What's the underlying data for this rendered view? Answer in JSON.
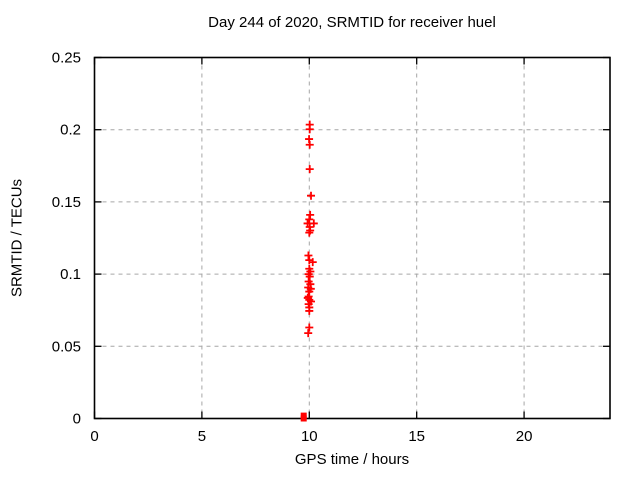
{
  "chart_data": {
    "type": "scatter",
    "title": "Day 244 of 2020, SRMTID for receiver huel",
    "xlabel": "GPS time / hours",
    "ylabel": "SRMTID / TECUs",
    "xlim": [
      0,
      24
    ],
    "ylim": [
      0,
      0.25
    ],
    "grid": true,
    "legend": "none",
    "x_ticks": [
      {
        "v": 0,
        "label": "0"
      },
      {
        "v": 5,
        "label": "5"
      },
      {
        "v": 10,
        "label": "10"
      },
      {
        "v": 15,
        "label": "15"
      },
      {
        "v": 20,
        "label": "20"
      }
    ],
    "y_ticks": [
      {
        "v": 0,
        "label": "0"
      },
      {
        "v": 0.05,
        "label": "0.05"
      },
      {
        "v": 0.1,
        "label": "0.1"
      },
      {
        "v": 0.15,
        "label": "0.15"
      },
      {
        "v": 0.2,
        "label": "0.2"
      },
      {
        "v": 0.25,
        "label": "0.25"
      }
    ],
    "colors": {
      "marker": "#ff0000",
      "grid": "#a6a6a6",
      "border": "#000000"
    },
    "series": [
      {
        "name": "srmtid-values",
        "marker": "plus",
        "color": "#ff0000",
        "points": [
          [
            10.02,
            0.2035
          ],
          [
            10.02,
            0.2003
          ],
          [
            9.99,
            0.1935
          ],
          [
            10.02,
            0.1896
          ],
          [
            10.02,
            0.1727
          ],
          [
            10.08,
            0.1543
          ],
          [
            10.04,
            0.141
          ],
          [
            10.0,
            0.1379
          ],
          [
            9.92,
            0.1351
          ],
          [
            10.21,
            0.1351
          ],
          [
            10.02,
            0.1326
          ],
          [
            10.04,
            0.1302
          ],
          [
            10.0,
            0.1287
          ],
          [
            9.96,
            0.1129
          ],
          [
            10.0,
            0.1097
          ],
          [
            10.16,
            0.1083
          ],
          [
            10.0,
            0.1037
          ],
          [
            10.05,
            0.1018
          ],
          [
            9.97,
            0.1
          ],
          [
            10.02,
            0.0983
          ],
          [
            9.97,
            0.0949
          ],
          [
            10.05,
            0.093
          ],
          [
            9.95,
            0.0907
          ],
          [
            10.07,
            0.0898
          ],
          [
            10.0,
            0.0879
          ],
          [
            9.97,
            0.0845
          ],
          [
            9.93,
            0.0835
          ],
          [
            10.0,
            0.0822
          ],
          [
            10.08,
            0.081
          ],
          [
            9.97,
            0.0792
          ],
          [
            10.0,
            0.0769
          ],
          [
            10.0,
            0.0745
          ],
          [
            10.0,
            0.063
          ],
          [
            9.95,
            0.0591
          ]
        ]
      },
      {
        "name": "srmtid-zero-values",
        "marker": "square",
        "color": "#ff0000",
        "points": [
          [
            9.74,
            0.0
          ],
          [
            9.74,
            0.002
          ]
        ]
      }
    ]
  }
}
